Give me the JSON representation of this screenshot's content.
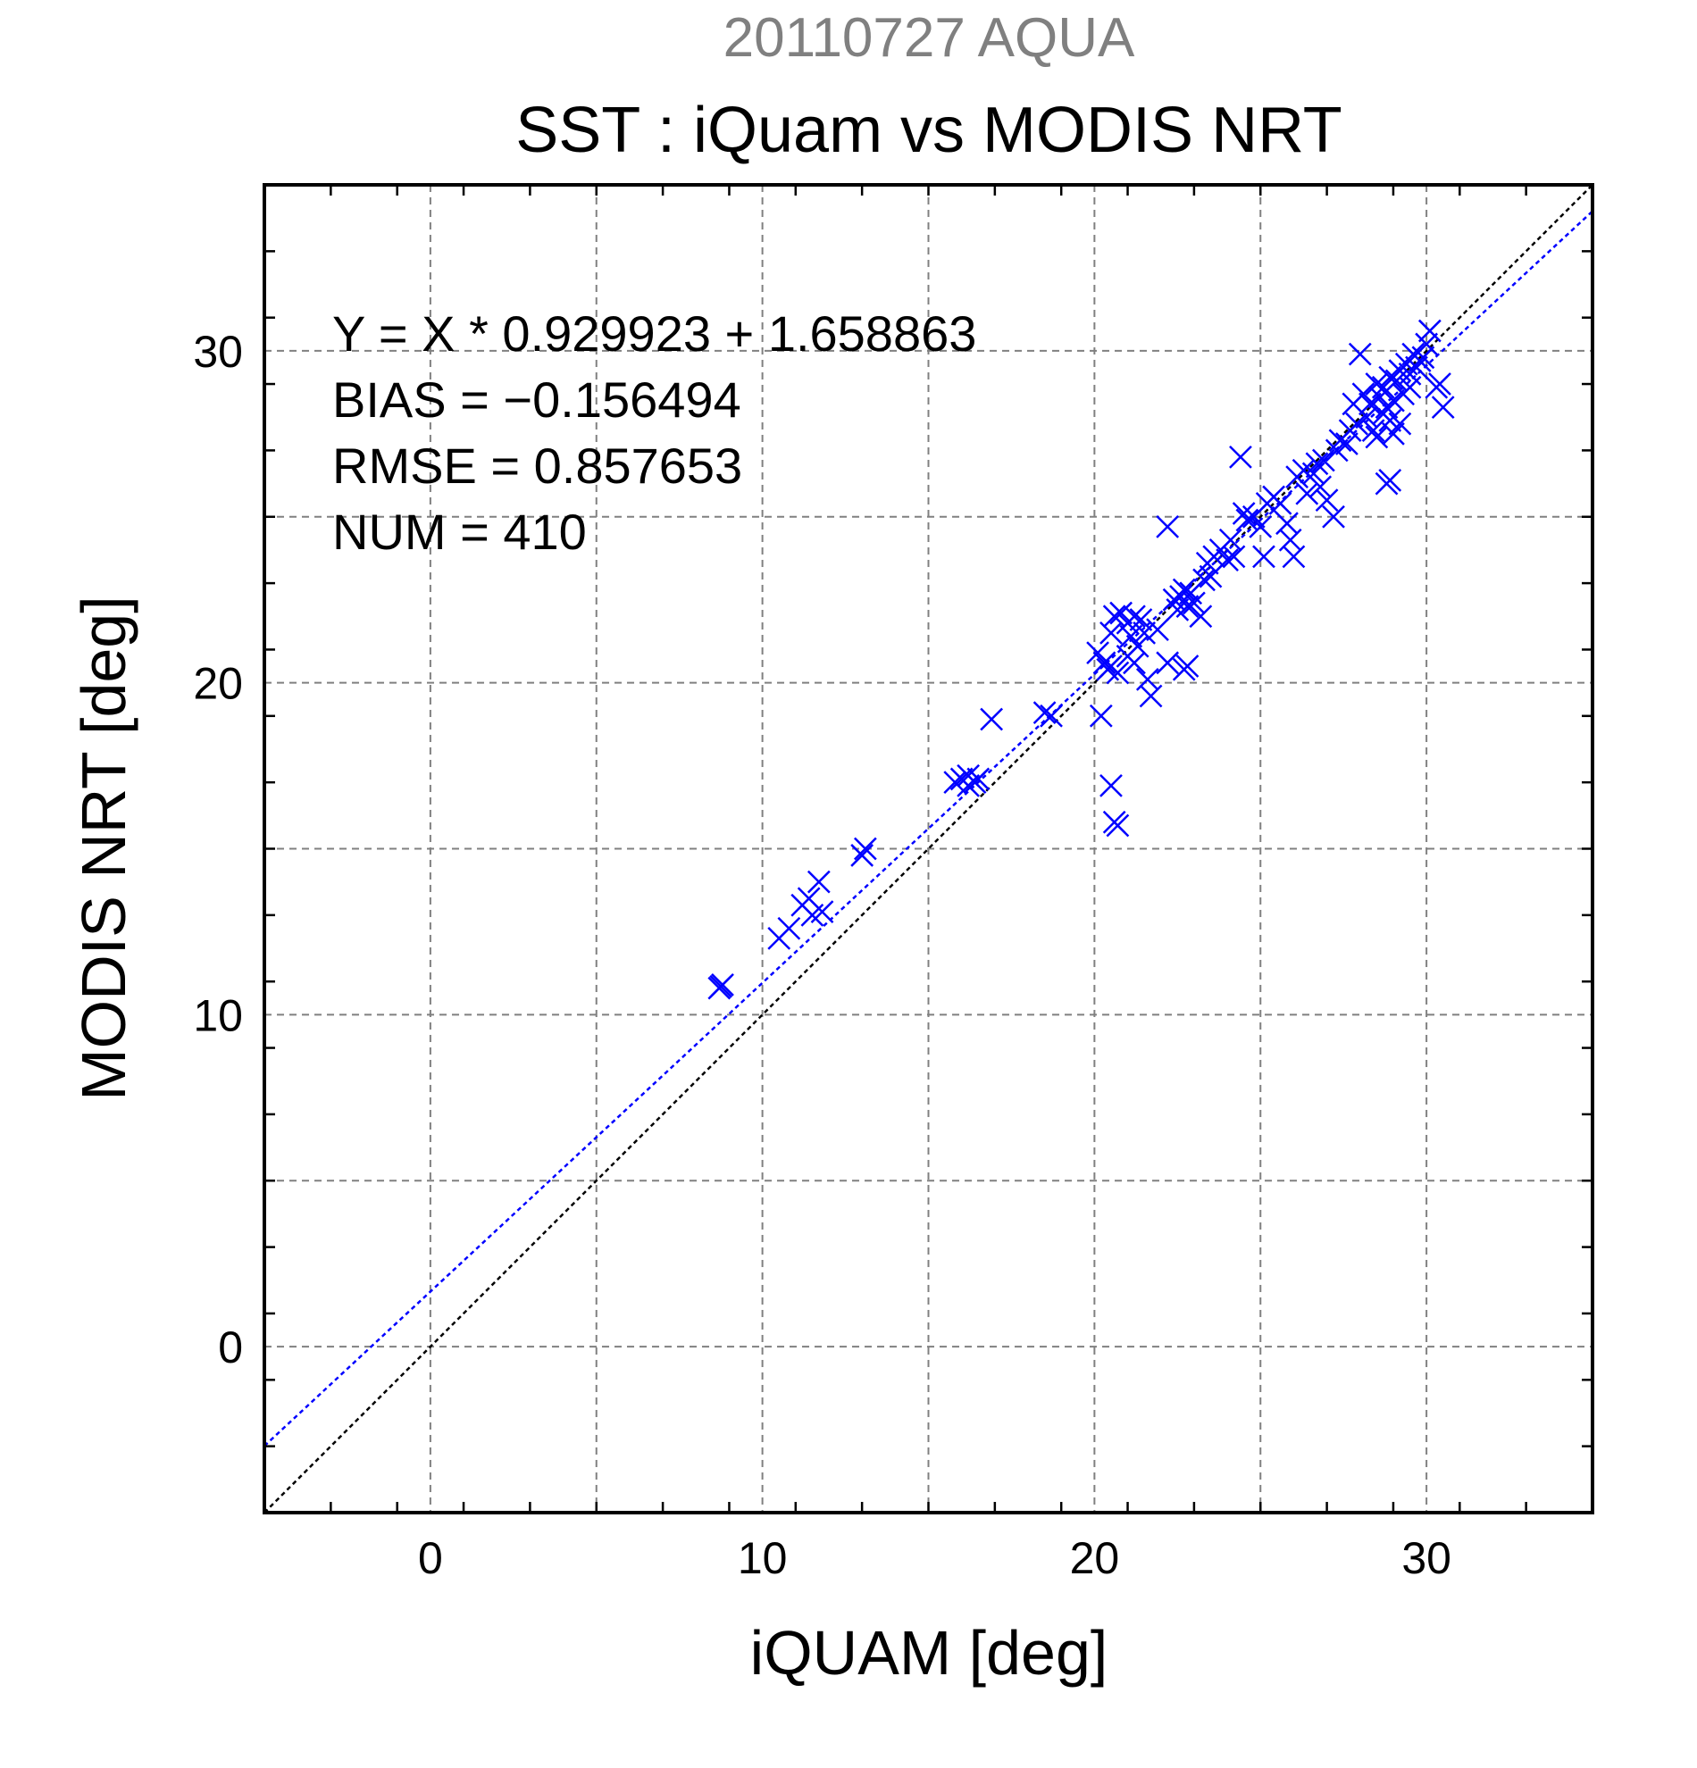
{
  "chart_data": {
    "type": "scatter",
    "suptitle": "20110727 AQUA",
    "title": "SST : iQuam vs MODIS NRT",
    "xlabel": "iQUAM [deg]",
    "ylabel": "MODIS NRT [deg]",
    "xlim": [
      -5,
      35
    ],
    "ylim": [
      -5,
      35
    ],
    "xticks": [
      0,
      10,
      20,
      30
    ],
    "yticks": [
      0,
      10,
      20,
      30
    ],
    "grid_lines": [
      -5,
      0,
      5,
      10,
      15,
      20,
      25,
      30,
      35
    ],
    "grid": true,
    "annotations": [
      "Y = X * 0.929923 + 1.658863",
      "BIAS = −0.156494",
      "RMSE = 0.857653",
      "NUM = 410"
    ],
    "fit": {
      "slope": 0.929923,
      "intercept": 1.658863
    },
    "colors": {
      "points": "#0000ff",
      "fit_line": "#0000ff",
      "identity_line": "#000000",
      "grid": "#808080",
      "suptitle": "#808080"
    },
    "points": [
      [
        8.7,
        10.8
      ],
      [
        8.8,
        10.9
      ],
      [
        8.75,
        10.85
      ],
      [
        10.5,
        12.3
      ],
      [
        10.8,
        12.6
      ],
      [
        11.2,
        13.3
      ],
      [
        11.4,
        13.5
      ],
      [
        11.5,
        13.0
      ],
      [
        11.7,
        14.0
      ],
      [
        11.8,
        13.1
      ],
      [
        13.0,
        14.8
      ],
      [
        13.1,
        15.0
      ],
      [
        15.8,
        17.0
      ],
      [
        16.0,
        17.1
      ],
      [
        16.2,
        17.2
      ],
      [
        16.4,
        17.0
      ],
      [
        16.5,
        17.1
      ],
      [
        16.2,
        16.9
      ],
      [
        16.9,
        18.9
      ],
      [
        18.5,
        19.1
      ],
      [
        18.7,
        19.0
      ],
      [
        20.1,
        20.9
      ],
      [
        20.2,
        19.0
      ],
      [
        20.3,
        20.6
      ],
      [
        20.4,
        20.4
      ],
      [
        20.5,
        20.5
      ],
      [
        20.7,
        20.3
      ],
      [
        20.5,
        21.5
      ],
      [
        20.6,
        22.0
      ],
      [
        20.8,
        22.1
      ],
      [
        21.0,
        21.8
      ],
      [
        21.2,
        22.0
      ],
      [
        21.4,
        21.9
      ],
      [
        21.1,
        21.4
      ],
      [
        21.3,
        21.1
      ],
      [
        21.0,
        20.8
      ],
      [
        21.2,
        20.6
      ],
      [
        21.5,
        21.5
      ],
      [
        21.6,
        20.1
      ],
      [
        21.7,
        19.6
      ],
      [
        21.9,
        21.6
      ],
      [
        22.2,
        20.6
      ],
      [
        20.5,
        16.9
      ],
      [
        20.6,
        15.8
      ],
      [
        20.7,
        15.7
      ],
      [
        22.2,
        24.7
      ],
      [
        22.4,
        22.5
      ],
      [
        22.6,
        22.6
      ],
      [
        22.7,
        22.8
      ],
      [
        22.9,
        22.7
      ],
      [
        22.5,
        22.2
      ],
      [
        22.8,
        22.3
      ],
      [
        23.0,
        22.4
      ],
      [
        23.2,
        22.0
      ],
      [
        23.3,
        23.1
      ],
      [
        23.4,
        23.6
      ],
      [
        23.5,
        23.2
      ],
      [
        23.6,
        23.8
      ],
      [
        23.8,
        24.0
      ],
      [
        24.0,
        23.7
      ],
      [
        24.2,
        23.8
      ],
      [
        24.1,
        24.3
      ],
      [
        22.8,
        20.5
      ],
      [
        22.7,
        20.4
      ],
      [
        24.4,
        26.8
      ],
      [
        24.5,
        25.1
      ],
      [
        24.6,
        24.9
      ],
      [
        24.8,
        25.0
      ],
      [
        25.0,
        24.7
      ],
      [
        25.1,
        23.8
      ],
      [
        25.2,
        25.4
      ],
      [
        25.4,
        25.6
      ],
      [
        25.6,
        25.4
      ],
      [
        25.8,
        24.8
      ],
      [
        25.9,
        24.3
      ],
      [
        26.0,
        23.8
      ],
      [
        26.1,
        26.2
      ],
      [
        26.3,
        26.4
      ],
      [
        26.4,
        25.7
      ],
      [
        26.6,
        26.3
      ],
      [
        26.7,
        26.6
      ],
      [
        26.8,
        25.9
      ],
      [
        26.9,
        26.7
      ],
      [
        27.0,
        25.5
      ],
      [
        27.2,
        25.0
      ],
      [
        27.3,
        27.0
      ],
      [
        27.4,
        27.3
      ],
      [
        27.6,
        27.2
      ],
      [
        27.7,
        27.6
      ],
      [
        27.8,
        28.4
      ],
      [
        27.9,
        27.8
      ],
      [
        28.0,
        29.9
      ],
      [
        28.1,
        28.7
      ],
      [
        28.2,
        28.0
      ],
      [
        28.3,
        28.4
      ],
      [
        28.4,
        27.6
      ],
      [
        28.5,
        27.4
      ],
      [
        28.6,
        28.6
      ],
      [
        28.7,
        28.9
      ],
      [
        28.8,
        28.3
      ],
      [
        28.9,
        29.2
      ],
      [
        28.5,
        29.0
      ],
      [
        28.7,
        28.1
      ],
      [
        28.9,
        27.9
      ],
      [
        29.0,
        28.5
      ],
      [
        29.1,
        29.1
      ],
      [
        29.2,
        29.4
      ],
      [
        29.3,
        28.7
      ],
      [
        29.4,
        29.6
      ],
      [
        29.5,
        29.3
      ],
      [
        29.6,
        29.9
      ],
      [
        29.7,
        29.5
      ],
      [
        29.8,
        29.7
      ],
      [
        29.9,
        29.8
      ],
      [
        30.0,
        30.2
      ],
      [
        29.5,
        28.9
      ],
      [
        29.2,
        27.8
      ],
      [
        29.0,
        27.5
      ],
      [
        28.8,
        26.0
      ],
      [
        28.9,
        26.1
      ],
      [
        30.1,
        30.6
      ],
      [
        30.3,
        28.9
      ],
      [
        30.4,
        29.0
      ],
      [
        30.5,
        28.3
      ]
    ]
  }
}
